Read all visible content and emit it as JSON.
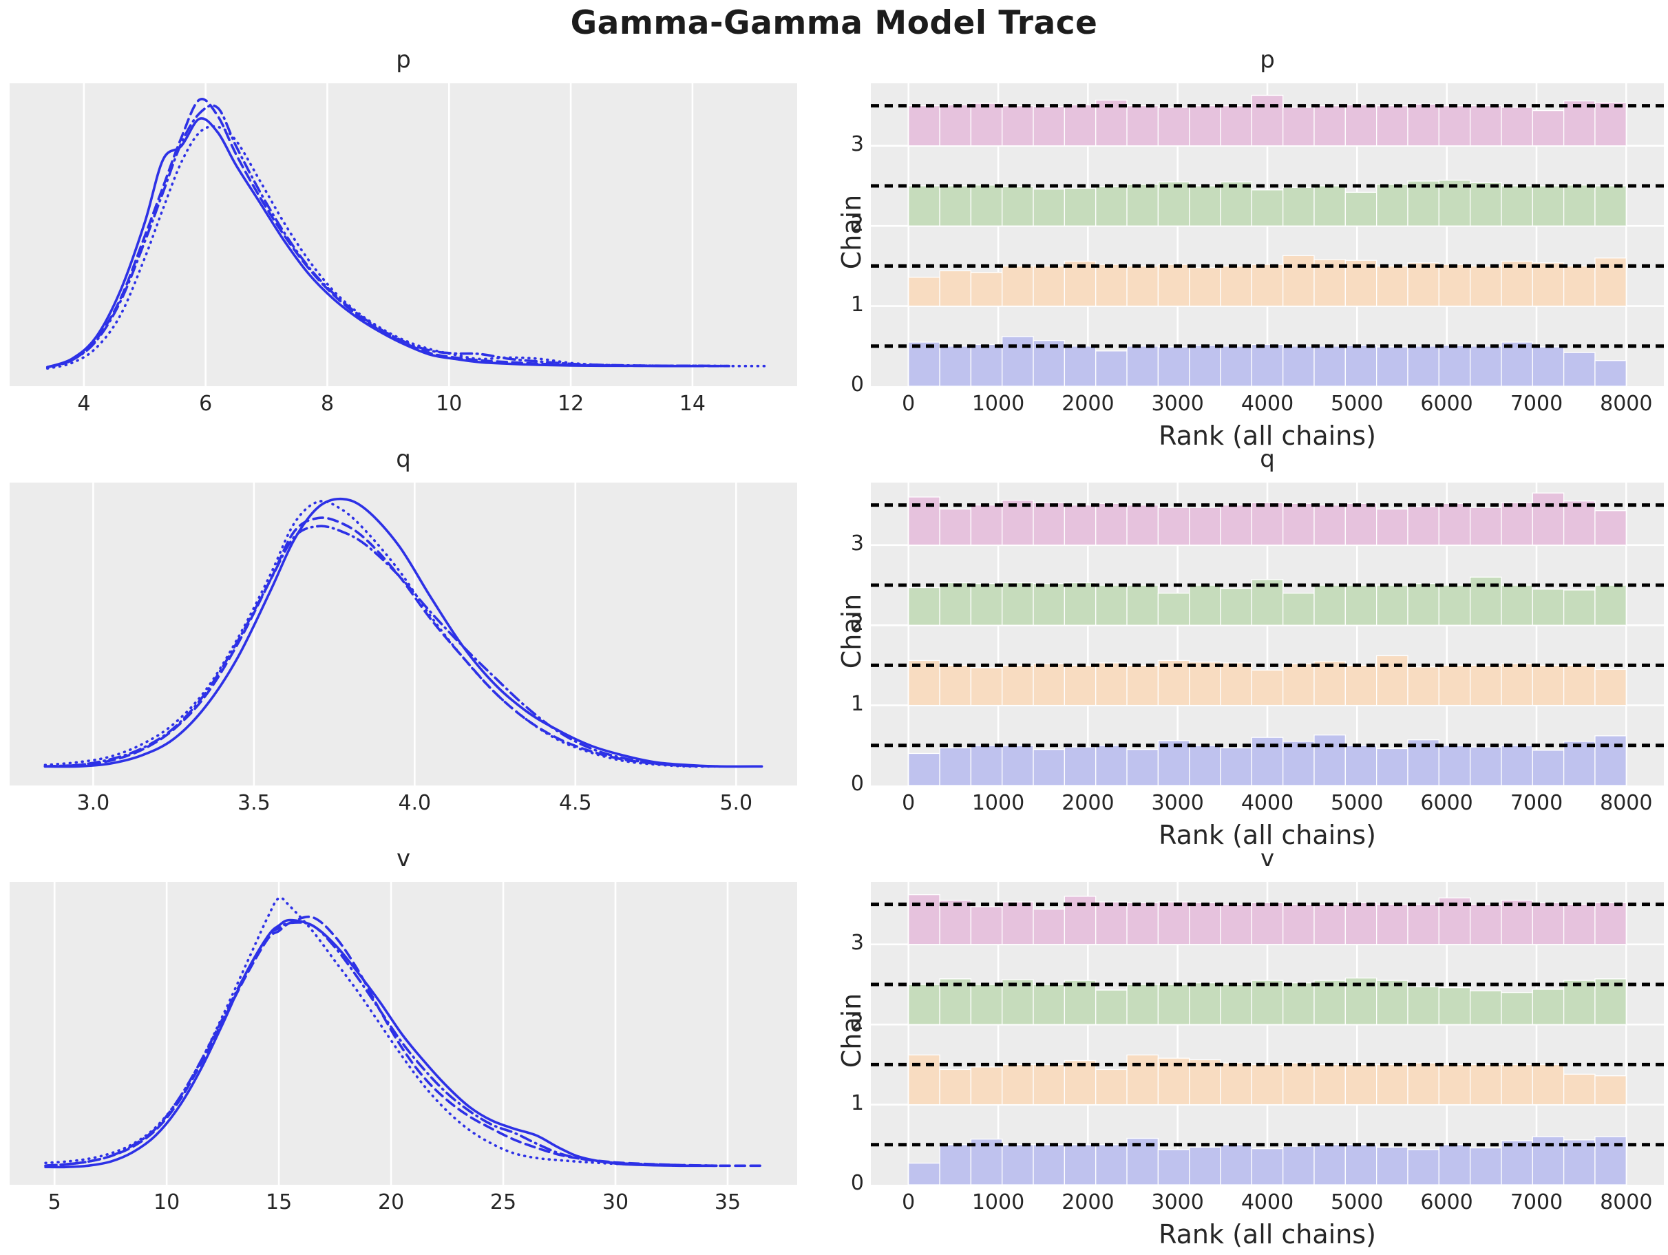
{
  "figure_title": "Gamma-Gamma Model Trace",
  "style": {
    "axes_bg": "#ececec",
    "grid_color": "#ffffff",
    "kde_line_color": "#2d31e6",
    "ref_line_color": "#000000",
    "tick_text_color": "#262626",
    "chain_fill_colors": [
      "#bfc2ee",
      "#f8dcc1",
      "#c6dcbc",
      "#e6c2dd"
    ],
    "chain_line_styles": [
      "solid",
      "dashed",
      "dotted",
      "dashdot"
    ]
  },
  "chart_data": [
    {
      "type": "line",
      "subtype": "kde-density",
      "title": "p",
      "xlim": [
        2.78,
        15.72
      ],
      "ylim": [
        -0.05,
        1.06
      ],
      "xticks": {
        "values": [
          4,
          6,
          8,
          10,
          12,
          14
        ],
        "labels": [
          "4",
          "6",
          "8",
          "10",
          "12",
          "14"
        ]
      },
      "x": [
        3.4,
        3.8,
        4.2,
        4.6,
        5.0,
        5.3,
        5.6,
        5.9,
        6.2,
        6.5,
        6.9,
        7.3,
        7.7,
        8.1,
        8.5,
        8.9,
        9.3,
        9.7,
        10.1,
        10.5,
        11.0,
        11.5,
        12.0,
        12.5,
        13.0,
        13.5,
        14.0,
        14.6,
        15.2
      ],
      "series": [
        {
          "name": "chain 0",
          "style": "solid",
          "y": [
            0.02,
            0.05,
            0.13,
            0.3,
            0.55,
            0.78,
            0.83,
            0.93,
            0.88,
            0.76,
            0.62,
            0.48,
            0.36,
            0.27,
            0.2,
            0.145,
            0.1,
            0.065,
            0.05,
            0.038,
            0.032,
            0.028,
            0.026,
            0.025,
            0.025,
            0.024,
            0.024,
            null,
            null
          ]
        },
        {
          "name": "chain 1",
          "style": "dashed",
          "y": [
            0.02,
            0.045,
            0.12,
            0.27,
            0.5,
            0.68,
            0.86,
            1.0,
            0.94,
            0.8,
            0.64,
            0.5,
            0.38,
            0.285,
            0.21,
            0.15,
            0.105,
            0.07,
            0.055,
            0.045,
            0.038,
            0.032,
            0.028,
            0.026,
            0.025,
            0.025,
            0.024,
            0.024,
            null
          ]
        },
        {
          "name": "chain 2",
          "style": "dotted",
          "y": [
            0.015,
            0.035,
            0.09,
            0.21,
            0.42,
            0.6,
            0.77,
            0.88,
            0.9,
            0.85,
            0.7,
            0.545,
            0.41,
            0.3,
            0.22,
            0.16,
            0.115,
            0.085,
            0.065,
            0.05,
            0.055,
            0.05,
            0.035,
            0.028,
            0.026,
            0.025,
            0.025,
            0.024,
            0.024
          ]
        },
        {
          "name": "chain 3",
          "style": "dashdot",
          "y": [
            0.02,
            0.045,
            0.115,
            0.26,
            0.48,
            0.66,
            0.84,
            0.95,
            0.97,
            0.83,
            0.66,
            0.51,
            0.385,
            0.29,
            0.215,
            0.155,
            0.11,
            0.08,
            0.07,
            0.068,
            0.05,
            0.04,
            0.032,
            0.028,
            0.026,
            0.025,
            0.025,
            0.024,
            null
          ]
        }
      ]
    },
    {
      "type": "bar",
      "subtype": "rank-histogram",
      "title": "p",
      "xlabel": "Rank (all chains)",
      "ylabel": "Chain",
      "xlim": [
        -420,
        8420
      ],
      "ylim": [
        0,
        3.78
      ],
      "xticks": {
        "values": [
          0,
          1000,
          2000,
          3000,
          4000,
          5000,
          6000,
          7000,
          8000
        ],
        "labels": [
          "0",
          "1000",
          "2000",
          "3000",
          "4000",
          "5000",
          "6000",
          "7000",
          "8000"
        ]
      },
      "yticks": {
        "values": [
          0,
          1,
          2,
          3
        ],
        "labels": [
          "0",
          "1",
          "2",
          "3"
        ]
      },
      "bins": {
        "start": 0,
        "end": 8000,
        "count": 23
      },
      "ref_lines": [
        0.5,
        1.5,
        2.5,
        3.5
      ],
      "series": [
        {
          "name": "chain 0",
          "base": 0,
          "values": [
            0.55,
            0.5,
            0.52,
            0.62,
            0.57,
            0.5,
            0.44,
            0.5,
            0.49,
            0.51,
            0.5,
            0.52,
            0.5,
            0.5,
            0.51,
            0.49,
            0.5,
            0.51,
            0.5,
            0.55,
            0.49,
            0.42,
            0.32
          ]
        },
        {
          "name": "chain 1",
          "base": 1,
          "values": [
            0.36,
            0.44,
            0.42,
            0.5,
            0.5,
            0.56,
            0.52,
            0.5,
            0.52,
            0.48,
            0.5,
            0.52,
            0.63,
            0.58,
            0.57,
            0.5,
            0.54,
            0.52,
            0.5,
            0.56,
            0.54,
            0.5,
            0.6
          ]
        },
        {
          "name": "chain 2",
          "base": 2,
          "values": [
            0.5,
            0.5,
            0.51,
            0.49,
            0.46,
            0.47,
            0.49,
            0.52,
            0.55,
            0.5,
            0.55,
            0.45,
            0.48,
            0.5,
            0.42,
            0.52,
            0.56,
            0.57,
            0.54,
            0.5,
            0.5,
            0.51,
            0.5
          ]
        },
        {
          "name": "chain 3",
          "base": 3,
          "values": [
            0.5,
            0.51,
            0.53,
            0.5,
            0.49,
            0.51,
            0.57,
            0.5,
            0.48,
            0.5,
            0.5,
            0.63,
            0.48,
            0.5,
            0.51,
            0.5,
            0.52,
            0.5,
            0.5,
            0.48,
            0.44,
            0.56,
            0.54
          ]
        }
      ]
    },
    {
      "type": "line",
      "subtype": "kde-density",
      "title": "q",
      "xlim": [
        2.74,
        5.19
      ],
      "ylim": [
        -0.05,
        1.06
      ],
      "xticks": {
        "values": [
          3.0,
          3.5,
          4.0,
          4.5,
          5.0
        ],
        "labels": [
          "3.0",
          "3.5",
          "4.0",
          "4.5",
          "5.0"
        ]
      },
      "x": [
        2.85,
        2.95,
        3.05,
        3.15,
        3.25,
        3.35,
        3.45,
        3.55,
        3.625,
        3.7,
        3.775,
        3.85,
        3.95,
        4.05,
        4.15,
        4.25,
        4.35,
        4.45,
        4.55,
        4.65,
        4.75,
        4.85,
        4.95,
        5.08
      ],
      "series": [
        {
          "name": "chain 0",
          "style": "solid",
          "y": [
            0.02,
            0.02,
            0.03,
            0.06,
            0.12,
            0.24,
            0.42,
            0.66,
            0.85,
            0.97,
            1.0,
            0.96,
            0.83,
            0.64,
            0.46,
            0.32,
            0.22,
            0.15,
            0.095,
            0.06,
            0.035,
            0.025,
            0.02,
            0.02
          ]
        },
        {
          "name": "chain 1",
          "style": "dashed",
          "y": [
            0.02,
            0.025,
            0.04,
            0.08,
            0.155,
            0.28,
            0.47,
            0.7,
            0.88,
            0.93,
            0.91,
            0.85,
            0.72,
            0.56,
            0.42,
            0.29,
            0.19,
            0.12,
            0.075,
            0.045,
            0.03,
            0.022,
            0.02,
            null
          ]
        },
        {
          "name": "chain 2",
          "style": "dotted",
          "y": [
            0.025,
            0.035,
            0.055,
            0.1,
            0.175,
            0.3,
            0.49,
            0.72,
            0.91,
            0.99,
            0.96,
            0.88,
            0.74,
            0.57,
            0.42,
            0.29,
            0.19,
            0.115,
            0.07,
            0.04,
            0.027,
            0.02,
            0.02,
            null
          ]
        },
        {
          "name": "chain 3",
          "style": "dashdot",
          "y": [
            0.02,
            0.025,
            0.045,
            0.085,
            0.16,
            0.29,
            0.48,
            0.7,
            0.86,
            0.9,
            0.88,
            0.83,
            0.72,
            0.585,
            0.46,
            0.345,
            0.235,
            0.145,
            0.085,
            0.05,
            0.03,
            0.022,
            0.02,
            null
          ]
        }
      ]
    },
    {
      "type": "bar",
      "subtype": "rank-histogram",
      "title": "q",
      "xlabel": "Rank (all chains)",
      "ylabel": "Chain",
      "xlim": [
        -420,
        8420
      ],
      "ylim": [
        0,
        3.78
      ],
      "xticks": {
        "values": [
          0,
          1000,
          2000,
          3000,
          4000,
          5000,
          6000,
          7000,
          8000
        ],
        "labels": [
          "0",
          "1000",
          "2000",
          "3000",
          "4000",
          "5000",
          "6000",
          "7000",
          "8000"
        ]
      },
      "yticks": {
        "values": [
          0,
          1,
          2,
          3
        ],
        "labels": [
          "0",
          "1",
          "2",
          "3"
        ]
      },
      "bins": {
        "start": 0,
        "end": 8000,
        "count": 23
      },
      "ref_lines": [
        0.5,
        1.5,
        2.5,
        3.5
      ],
      "series": [
        {
          "name": "chain 0",
          "base": 0,
          "values": [
            0.4,
            0.47,
            0.5,
            0.5,
            0.45,
            0.48,
            0.5,
            0.45,
            0.56,
            0.5,
            0.47,
            0.6,
            0.55,
            0.63,
            0.5,
            0.46,
            0.57,
            0.5,
            0.48,
            0.5,
            0.44,
            0.55,
            0.62
          ]
        },
        {
          "name": "chain 1",
          "base": 1,
          "values": [
            0.56,
            0.5,
            0.47,
            0.5,
            0.52,
            0.5,
            0.53,
            0.5,
            0.56,
            0.54,
            0.53,
            0.44,
            0.52,
            0.55,
            0.5,
            0.62,
            0.48,
            0.5,
            0.5,
            0.52,
            0.5,
            0.5,
            0.45
          ]
        },
        {
          "name": "chain 2",
          "base": 2,
          "values": [
            0.47,
            0.53,
            0.52,
            0.53,
            0.52,
            0.53,
            0.5,
            0.5,
            0.4,
            0.5,
            0.46,
            0.57,
            0.4,
            0.5,
            0.5,
            0.5,
            0.52,
            0.5,
            0.6,
            0.5,
            0.45,
            0.44,
            0.5
          ]
        },
        {
          "name": "chain 3",
          "base": 3,
          "values": [
            0.6,
            0.45,
            0.5,
            0.56,
            0.53,
            0.5,
            0.52,
            0.5,
            0.47,
            0.47,
            0.5,
            0.53,
            0.52,
            0.5,
            0.52,
            0.45,
            0.48,
            0.52,
            0.47,
            0.53,
            0.65,
            0.55,
            0.43
          ]
        }
      ]
    },
    {
      "type": "line",
      "subtype": "kde-density",
      "title": "v",
      "xlim": [
        3.0,
        38.1
      ],
      "ylim": [
        -0.05,
        1.06
      ],
      "xticks": {
        "values": [
          5,
          10,
          15,
          20,
          25,
          30,
          35
        ],
        "labels": [
          "5",
          "10",
          "15",
          "20",
          "25",
          "30",
          "35"
        ]
      },
      "x": [
        4.6,
        5.5,
        6.5,
        7.5,
        8.5,
        9.5,
        10.5,
        11.5,
        12.5,
        13.5,
        14.5,
        15.0,
        15.5,
        16.5,
        17.5,
        18.5,
        19.5,
        20.5,
        21.5,
        22.5,
        23.5,
        24.5,
        25.5,
        26.5,
        27.5,
        28.5,
        30,
        31.5,
        33,
        34.5,
        36.5
      ],
      "series": [
        {
          "name": "chain 0",
          "style": "solid",
          "y": [
            0.015,
            0.015,
            0.02,
            0.035,
            0.07,
            0.13,
            0.23,
            0.37,
            0.54,
            0.72,
            0.86,
            0.9,
            0.92,
            0.9,
            0.83,
            0.73,
            0.62,
            0.5,
            0.4,
            0.31,
            0.235,
            0.185,
            0.155,
            0.13,
            0.085,
            0.05,
            0.028,
            0.022,
            0.02,
            0.02,
            null
          ]
        },
        {
          "name": "chain 1",
          "style": "dashed",
          "y": [
            0.02,
            0.025,
            0.035,
            0.055,
            0.09,
            0.15,
            0.25,
            0.39,
            0.55,
            0.71,
            0.85,
            0.88,
            0.91,
            0.93,
            0.86,
            0.74,
            0.59,
            0.45,
            0.34,
            0.26,
            0.2,
            0.155,
            0.115,
            0.085,
            0.06,
            0.045,
            0.032,
            0.026,
            0.022,
            0.02,
            0.02
          ]
        },
        {
          "name": "chain 2",
          "style": "dotted",
          "y": [
            0.03,
            0.035,
            0.045,
            0.065,
            0.1,
            0.16,
            0.26,
            0.4,
            0.57,
            0.75,
            0.93,
            1.0,
            0.97,
            0.88,
            0.77,
            0.66,
            0.54,
            0.42,
            0.31,
            0.22,
            0.15,
            0.1,
            0.065,
            0.048,
            0.04,
            0.034,
            0.027,
            0.023,
            0.02,
            null,
            null
          ]
        },
        {
          "name": "chain 3",
          "style": "dashdot",
          "y": [
            0.02,
            0.025,
            0.035,
            0.055,
            0.095,
            0.155,
            0.26,
            0.4,
            0.56,
            0.72,
            0.86,
            0.89,
            0.91,
            0.9,
            0.82,
            0.71,
            0.59,
            0.47,
            0.37,
            0.285,
            0.22,
            0.17,
            0.14,
            0.1,
            0.065,
            0.045,
            0.03,
            0.025,
            0.022,
            0.02,
            null
          ]
        }
      ]
    },
    {
      "type": "bar",
      "subtype": "rank-histogram",
      "title": "v",
      "xlabel": "Rank (all chains)",
      "ylabel": "Chain",
      "xlim": [
        -420,
        8420
      ],
      "ylim": [
        0,
        3.78
      ],
      "xticks": {
        "values": [
          0,
          1000,
          2000,
          3000,
          4000,
          5000,
          6000,
          7000,
          8000
        ],
        "labels": [
          "0",
          "1000",
          "2000",
          "3000",
          "4000",
          "5000",
          "6000",
          "7000",
          "8000"
        ]
      },
      "yticks": {
        "values": [
          0,
          1,
          2,
          3
        ],
        "labels": [
          "0",
          "1",
          "2",
          "3"
        ]
      },
      "bins": {
        "start": 0,
        "end": 8000,
        "count": 23
      },
      "ref_lines": [
        0.5,
        1.5,
        2.5,
        3.5
      ],
      "series": [
        {
          "name": "chain 0",
          "base": 0,
          "values": [
            0.27,
            0.5,
            0.57,
            0.5,
            0.5,
            0.5,
            0.5,
            0.58,
            0.44,
            0.47,
            0.5,
            0.45,
            0.48,
            0.5,
            0.5,
            0.47,
            0.44,
            0.5,
            0.46,
            0.55,
            0.6,
            0.56,
            0.6
          ]
        },
        {
          "name": "chain 1",
          "base": 1,
          "values": [
            0.62,
            0.44,
            0.47,
            0.5,
            0.5,
            0.55,
            0.44,
            0.62,
            0.58,
            0.56,
            0.52,
            0.5,
            0.52,
            0.5,
            0.5,
            0.5,
            0.52,
            0.5,
            0.5,
            0.5,
            0.5,
            0.38,
            0.36
          ]
        },
        {
          "name": "chain 2",
          "base": 2,
          "values": [
            0.5,
            0.57,
            0.5,
            0.56,
            0.5,
            0.55,
            0.43,
            0.5,
            0.5,
            0.52,
            0.5,
            0.55,
            0.52,
            0.55,
            0.58,
            0.55,
            0.47,
            0.46,
            0.42,
            0.4,
            0.44,
            0.55,
            0.57
          ]
        },
        {
          "name": "chain 3",
          "base": 3,
          "values": [
            0.62,
            0.55,
            0.47,
            0.53,
            0.44,
            0.6,
            0.53,
            0.52,
            0.53,
            0.52,
            0.5,
            0.52,
            0.5,
            0.5,
            0.52,
            0.5,
            0.5,
            0.58,
            0.5,
            0.55,
            0.52,
            0.5,
            0.52
          ]
        }
      ]
    }
  ]
}
